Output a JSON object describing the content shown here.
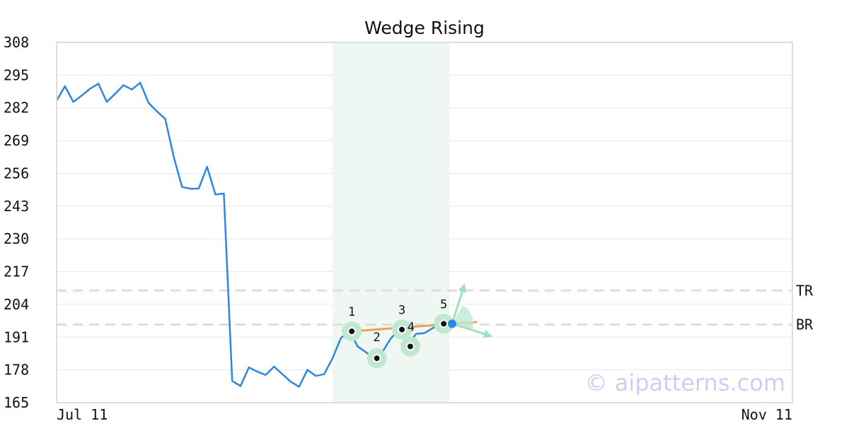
{
  "chart_data": {
    "type": "line",
    "title": "Wedge Rising",
    "xlabel": "",
    "ylabel": "",
    "ylim": [
      165,
      308
    ],
    "yticks": [
      308,
      295,
      282,
      269,
      256,
      243,
      230,
      217,
      204,
      191,
      178,
      165
    ],
    "x_tick_labels": [
      "Jul 11",
      "Nov 11"
    ],
    "grid": "horizontal",
    "colors": {
      "line": "#2e86de",
      "pattern_band": "#eef7f2",
      "trendline": "#f0a050",
      "marker_halo": "#bfe8cf",
      "arrow": "#9fe0c0",
      "current_point": "#2e86de",
      "reference_line": "#dddddd"
    },
    "series": [
      {
        "values": [
          284.9,
          290.6,
          284.4,
          286.9,
          289.6,
          291.6,
          284.4,
          287.6,
          291.0,
          289.3,
          292.0,
          284.0,
          280.6,
          277.6,
          262.6,
          250.6,
          249.9,
          250.0,
          258.6,
          247.6,
          248.0,
          173.6,
          171.6,
          179.0,
          177.3,
          176.0,
          179.3,
          176.3,
          173.3,
          171.3,
          178.0,
          175.6,
          176.3,
          182.6,
          190.6,
          193.6,
          187.3,
          185.0,
          182.6,
          185.3,
          190.6,
          194.0,
          188.0,
          192.3,
          192.6,
          194.6,
          196.6
        ]
      }
    ],
    "pattern": {
      "name": "Wedge Rising",
      "band_index_range": [
        33,
        47
      ],
      "points": [
        {
          "label": "1",
          "index": 35.3,
          "value": 193.3
        },
        {
          "label": "2",
          "index": 38.3,
          "value": 182.6
        },
        {
          "label": "3",
          "index": 41.3,
          "value": 194.0
        },
        {
          "label": "4",
          "index": 42.3,
          "value": 187.3
        },
        {
          "label": "5",
          "index": 46.3,
          "value": 196.3
        }
      ],
      "trendline": {
        "from": {
          "index": 35.3,
          "value": 193.3
        },
        "to": {
          "index": 50.3,
          "value": 197.0
        }
      },
      "current_point": {
        "index": 47.3,
        "value": 196.3
      }
    },
    "reference_lines": [
      {
        "label": "TR",
        "value": 209.5
      },
      {
        "label": "BR",
        "value": 196.0
      }
    ],
    "x_count": 89
  },
  "watermark": "© aipatterns.com"
}
